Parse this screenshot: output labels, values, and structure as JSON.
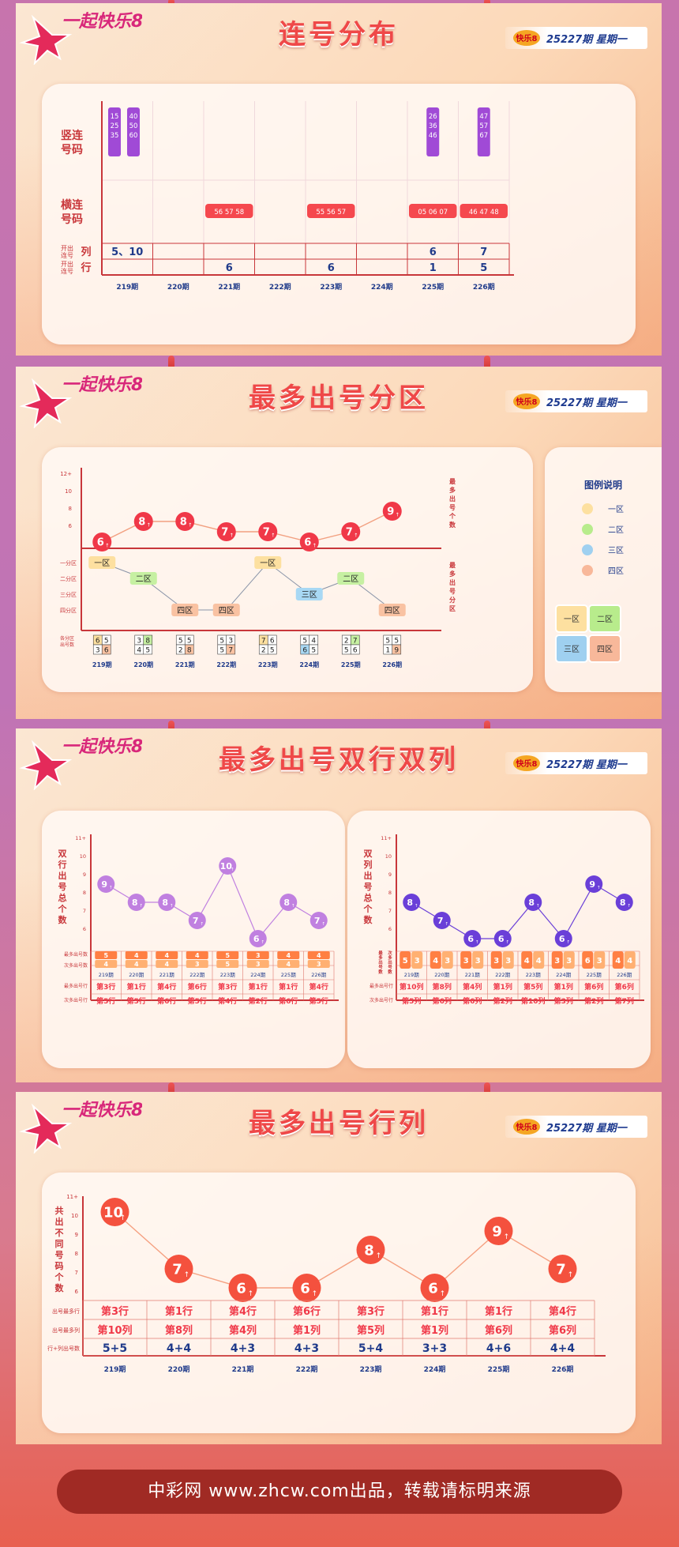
{
  "brand": {
    "logo_text": "一起快乐8",
    "issue_text": "25227期   星期一"
  },
  "footer": "中彩网 www.zhcw.com出品，转载请标明来源",
  "colors": {
    "red": "#f5484e",
    "purple": "#a04ad6",
    "orange": "#ff7f43",
    "navy": "#1f3a8a",
    "blue_violet": "#6a3fd8",
    "lavender": "#c080e0"
  },
  "sections": [
    {
      "title": "连号分布"
    },
    {
      "title": "最多出号分区"
    },
    {
      "title": "最多出号双行双列"
    },
    {
      "title": "最多出号行列"
    }
  ],
  "chart_data": [
    {
      "type": "table",
      "title": "连号分布",
      "periods": [
        "219期",
        "220期",
        "221期",
        "222期",
        "223期",
        "224期",
        "225期",
        "226期"
      ],
      "row_labels": {
        "vertical": "竖连号码",
        "horizontal": "横连号码",
        "col": "开出连号列",
        "row": "开出连号行"
      },
      "vertical_runs": [
        {
          "period": "219期",
          "groups": [
            [
              "15",
              "25",
              "35"
            ],
            [
              "40",
              "50",
              "60"
            ]
          ]
        },
        {
          "period": "225期",
          "groups": [
            [
              "26",
              "36",
              "46"
            ]
          ]
        },
        {
          "period": "226期",
          "groups": [
            [
              "47",
              "57",
              "67"
            ]
          ]
        }
      ],
      "horizontal_runs": [
        {
          "period": "221期",
          "text": "56 57 58"
        },
        {
          "period": "223期",
          "text": "55 56 57"
        },
        {
          "period": "225期",
          "text": "05 06 07"
        },
        {
          "period": "226期",
          "text": "46 47 48"
        }
      ],
      "cols_values": [
        "5、10",
        "",
        "",
        "",
        "",
        "",
        "6",
        "7"
      ],
      "rows_values": [
        "",
        "",
        "6",
        "",
        "6",
        "",
        "1",
        "5"
      ]
    },
    {
      "type": "line",
      "title": "最多出号分区",
      "periods": [
        "219期",
        "220期",
        "221期",
        "222期",
        "223期",
        "224期",
        "225期",
        "226期"
      ],
      "y_ticks": [
        "12+",
        "10",
        "8",
        "6"
      ],
      "ylabel": "最多出号个数",
      "values": [
        6,
        8,
        8,
        7,
        7,
        6,
        7,
        9
      ],
      "ylim": [
        5,
        12
      ],
      "zone_axis": [
        "一分区",
        "二分区",
        "三分区",
        "四分区"
      ],
      "zone_axis_label": "最多出号分区",
      "zones": [
        "一区",
        "二区",
        "四区",
        "四区",
        "一区",
        "三区",
        "二区",
        "四区"
      ],
      "counts_label": "各分区出号数",
      "zone_counts": [
        [
          6,
          5,
          3,
          6
        ],
        [
          3,
          8,
          4,
          5
        ],
        [
          5,
          5,
          2,
          8
        ],
        [
          5,
          3,
          5,
          7
        ],
        [
          7,
          6,
          2,
          5
        ],
        [
          5,
          4,
          6,
          5
        ],
        [
          2,
          7,
          5,
          6
        ],
        [
          5,
          5,
          1,
          9
        ]
      ],
      "legend": {
        "title": "图例说明",
        "items": [
          {
            "name": "一区",
            "color": "#fde0a0"
          },
          {
            "name": "二区",
            "color": "#b8ec8c"
          },
          {
            "name": "三区",
            "color": "#9fd0f0"
          },
          {
            "name": "四区",
            "color": "#f8b89a"
          }
        ]
      }
    },
    {
      "type": "line",
      "title": "最多出号双行",
      "periods": [
        "219期",
        "220期",
        "221期",
        "222期",
        "223期",
        "224期",
        "225期",
        "226期"
      ],
      "y_ticks": [
        "11+",
        "10",
        "9",
        "8",
        "7",
        "6"
      ],
      "ylabel": "双行出号总个数",
      "values": [
        9,
        8,
        8,
        7,
        10,
        6,
        8,
        7
      ],
      "ylim": [
        6,
        11
      ],
      "most_count": [
        5,
        4,
        4,
        4,
        5,
        3,
        4,
        4
      ],
      "second_count": [
        4,
        4,
        4,
        3,
        5,
        3,
        4,
        3
      ],
      "most_row": [
        "第3行",
        "第1行",
        "第4行",
        "第6行",
        "第3行",
        "第1行",
        "第1行",
        "第4行"
      ],
      "second_row": [
        "第5行",
        "第5行",
        "第6行",
        "第5行",
        "第4行",
        "第2行",
        "第6行",
        "第5行"
      ],
      "labels": {
        "most_count": "最多出号数",
        "second_count": "次多出号数",
        "most_row": "最多出号行",
        "second_row": "次多出号行"
      }
    },
    {
      "type": "line",
      "title": "最多出号双列",
      "periods": [
        "219期",
        "220期",
        "221期",
        "222期",
        "223期",
        "224期",
        "225期",
        "226期"
      ],
      "y_ticks": [
        "11+",
        "10",
        "9",
        "8",
        "7",
        "6"
      ],
      "ylabel": "双列出号总个数",
      "values": [
        8,
        7,
        6,
        6,
        8,
        6,
        9,
        8
      ],
      "ylim": [
        6,
        11
      ],
      "counts": [
        [
          5,
          3
        ],
        [
          4,
          3
        ],
        [
          3,
          3
        ],
        [
          3,
          3
        ],
        [
          4,
          4
        ],
        [
          3,
          3
        ],
        [
          6,
          3
        ],
        [
          4,
          4
        ]
      ],
      "most_col": [
        "第10列",
        "第8列",
        "第4列",
        "第1列",
        "第5列",
        "第1列",
        "第6列",
        "第6列"
      ],
      "second_col": [
        "第5列",
        "第6列",
        "第6列",
        "第2列",
        "第10列",
        "第3列",
        "第2列",
        "第7列"
      ],
      "labels": {
        "counts": "最多出号数 次多出号数",
        "most_col": "最多出号行",
        "second_col": "次多出号行"
      }
    },
    {
      "type": "line",
      "title": "最多出号行列",
      "periods": [
        "219期",
        "220期",
        "221期",
        "222期",
        "223期",
        "224期",
        "225期",
        "226期"
      ],
      "y_ticks": [
        "11+",
        "10",
        "9",
        "8",
        "7",
        "6"
      ],
      "ylabel": "共出不同号码个数",
      "values": [
        10,
        7,
        6,
        6,
        8,
        6,
        9,
        7
      ],
      "ylim": [
        6,
        11
      ],
      "most_row": [
        "第3行",
        "第1行",
        "第4行",
        "第6行",
        "第3行",
        "第1行",
        "第1行",
        "第4行"
      ],
      "most_col": [
        "第10列",
        "第8列",
        "第4列",
        "第1列",
        "第5列",
        "第1列",
        "第6列",
        "第6列"
      ],
      "row_col_counts": [
        "5+5",
        "4+4",
        "4+3",
        "4+3",
        "5+4",
        "3+3",
        "4+6",
        "4+4"
      ],
      "labels": {
        "most_row": "出号最多行",
        "most_col": "出号最多列",
        "counts": "行+列出号数"
      }
    }
  ]
}
